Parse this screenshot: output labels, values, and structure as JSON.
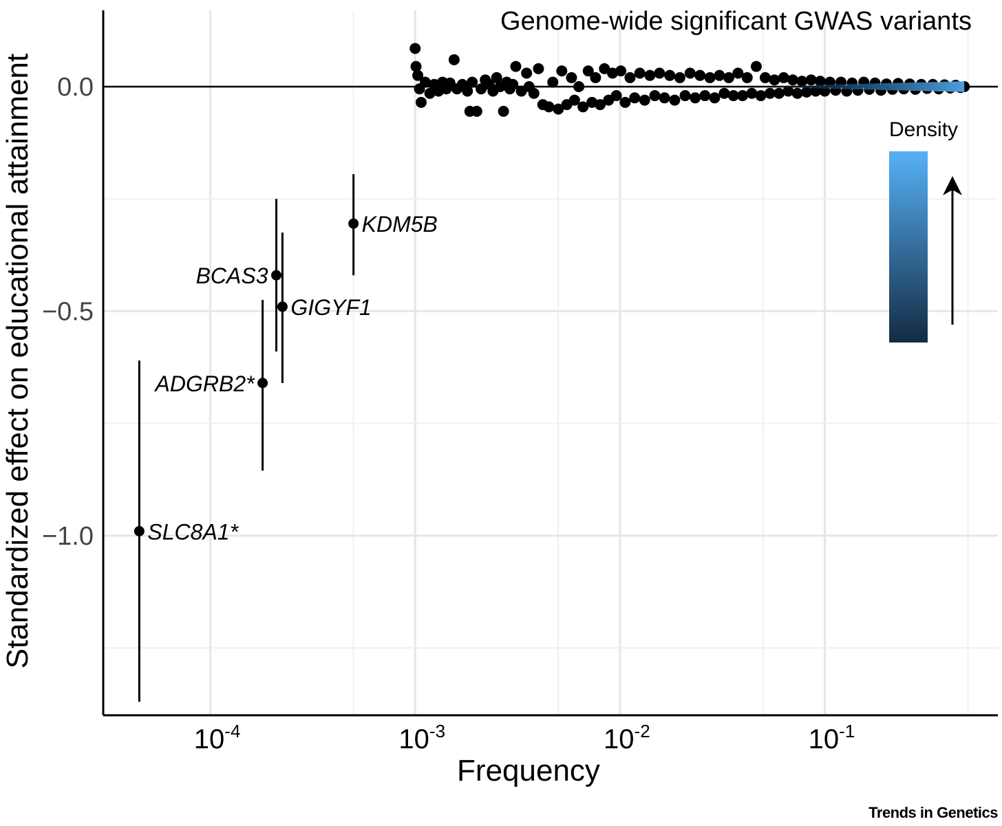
{
  "chart_data": {
    "type": "scatter",
    "title": "Genome-wide significant GWAS variants",
    "xlabel": "Frequency",
    "ylabel": "Standardized effect on educational attainment",
    "x_scale": "log10",
    "xlim": [
      3e-05,
      0.7
    ],
    "ylim": [
      -1.4,
      0.17
    ],
    "x_ticks": [
      {
        "value": 0.0001,
        "base": "10",
        "exp": "-4"
      },
      {
        "value": 0.001,
        "base": "10",
        "exp": "-3"
      },
      {
        "value": 0.01,
        "base": "10",
        "exp": "-2"
      },
      {
        "value": 0.1,
        "base": "10",
        "exp": "-1"
      }
    ],
    "y_ticks": [
      {
        "value": 0.0,
        "label": "0.0"
      },
      {
        "value": -0.5,
        "label": "−0.5"
      },
      {
        "value": -1.0,
        "label": "−1.0"
      }
    ],
    "grid": true,
    "reference_line_y": 0,
    "gene_points": [
      {
        "label": "KDM5B",
        "x": 0.0005,
        "y": -0.305,
        "lo": -0.42,
        "hi": -0.195,
        "label_side": "right"
      },
      {
        "label": "BCAS3",
        "x": 0.00021,
        "y": -0.42,
        "lo": -0.59,
        "hi": -0.25,
        "label_side": "left"
      },
      {
        "label": "GIGYF1",
        "x": 0.000225,
        "y": -0.49,
        "lo": -0.66,
        "hi": -0.325,
        "label_side": "right"
      },
      {
        "label": "ADGRB2*",
        "x": 0.00018,
        "y": -0.66,
        "lo": -0.855,
        "hi": -0.475,
        "label_side": "left"
      },
      {
        "label": "SLC8A1*",
        "x": 4.5e-05,
        "y": -0.99,
        "lo": -1.37,
        "hi": -0.61,
        "label_side": "right"
      }
    ],
    "gwas_points": [
      {
        "x": 0.001,
        "y": 0.085
      },
      {
        "x": 0.00101,
        "y": 0.045
      },
      {
        "x": 0.00103,
        "y": 0.025
      },
      {
        "x": 0.00105,
        "y": -0.005
      },
      {
        "x": 0.00107,
        "y": -0.035
      },
      {
        "x": 0.00112,
        "y": 0.01
      },
      {
        "x": 0.00118,
        "y": -0.015
      },
      {
        "x": 0.00124,
        "y": 0.005
      },
      {
        "x": 0.0013,
        "y": -0.01
      },
      {
        "x": 0.00136,
        "y": 0.01
      },
      {
        "x": 0.00142,
        "y": -0.005
      },
      {
        "x": 0.00148,
        "y": 0.008
      },
      {
        "x": 0.00155,
        "y": 0.06
      },
      {
        "x": 0.0016,
        "y": -0.005
      },
      {
        "x": 0.0017,
        "y": 0.005
      },
      {
        "x": 0.0018,
        "y": -0.01
      },
      {
        "x": 0.00185,
        "y": -0.055
      },
      {
        "x": 0.0019,
        "y": 0.01
      },
      {
        "x": 0.002,
        "y": -0.055
      },
      {
        "x": 0.0021,
        "y": -0.005
      },
      {
        "x": 0.0022,
        "y": 0.015
      },
      {
        "x": 0.0023,
        "y": 0.005
      },
      {
        "x": 0.0024,
        "y": -0.01
      },
      {
        "x": 0.0025,
        "y": 0.02
      },
      {
        "x": 0.0026,
        "y": 0.0
      },
      {
        "x": 0.0027,
        "y": -0.055
      },
      {
        "x": 0.0028,
        "y": 0.01
      },
      {
        "x": 0.0029,
        "y": -0.005
      },
      {
        "x": 0.003,
        "y": 0.005
      },
      {
        "x": 0.0031,
        "y": 0.045
      },
      {
        "x": 0.0033,
        "y": -0.01
      },
      {
        "x": 0.0035,
        "y": 0.03
      },
      {
        "x": 0.0036,
        "y": 0.0
      },
      {
        "x": 0.0038,
        "y": -0.015
      },
      {
        "x": 0.004,
        "y": 0.04
      },
      {
        "x": 0.0042,
        "y": -0.04
      },
      {
        "x": 0.0045,
        "y": -0.045
      },
      {
        "x": 0.0047,
        "y": 0.01
      },
      {
        "x": 0.005,
        "y": -0.05
      },
      {
        "x": 0.0052,
        "y": 0.035
      },
      {
        "x": 0.0055,
        "y": -0.04
      },
      {
        "x": 0.0058,
        "y": 0.02
      },
      {
        "x": 0.006,
        "y": -0.03
      },
      {
        "x": 0.0063,
        "y": 0.0
      },
      {
        "x": 0.0066,
        "y": -0.045
      },
      {
        "x": 0.007,
        "y": 0.035
      },
      {
        "x": 0.0073,
        "y": -0.035
      },
      {
        "x": 0.0076,
        "y": 0.02
      },
      {
        "x": 0.008,
        "y": -0.04
      },
      {
        "x": 0.0084,
        "y": 0.04
      },
      {
        "x": 0.0088,
        "y": -0.03
      },
      {
        "x": 0.0092,
        "y": 0.03
      },
      {
        "x": 0.0096,
        "y": -0.02
      },
      {
        "x": 0.0101,
        "y": 0.035
      },
      {
        "x": 0.0106,
        "y": -0.035
      },
      {
        "x": 0.0112,
        "y": 0.02
      },
      {
        "x": 0.0118,
        "y": -0.025
      },
      {
        "x": 0.0125,
        "y": 0.03
      },
      {
        "x": 0.0132,
        "y": -0.03
      },
      {
        "x": 0.014,
        "y": 0.025
      },
      {
        "x": 0.0148,
        "y": -0.02
      },
      {
        "x": 0.0156,
        "y": 0.03
      },
      {
        "x": 0.0165,
        "y": -0.025
      },
      {
        "x": 0.0175,
        "y": 0.025
      },
      {
        "x": 0.0185,
        "y": -0.03
      },
      {
        "x": 0.0196,
        "y": 0.02
      },
      {
        "x": 0.0208,
        "y": -0.02
      },
      {
        "x": 0.022,
        "y": 0.03
      },
      {
        "x": 0.0233,
        "y": -0.025
      },
      {
        "x": 0.0246,
        "y": 0.025
      },
      {
        "x": 0.026,
        "y": -0.02
      },
      {
        "x": 0.0275,
        "y": 0.02
      },
      {
        "x": 0.029,
        "y": -0.025
      },
      {
        "x": 0.0306,
        "y": 0.025
      },
      {
        "x": 0.0323,
        "y": -0.015
      },
      {
        "x": 0.034,
        "y": 0.02
      },
      {
        "x": 0.0358,
        "y": -0.02
      },
      {
        "x": 0.0377,
        "y": 0.03
      },
      {
        "x": 0.0397,
        "y": -0.02
      },
      {
        "x": 0.0418,
        "y": 0.02
      },
      {
        "x": 0.044,
        "y": -0.015
      },
      {
        "x": 0.0463,
        "y": 0.045
      },
      {
        "x": 0.0487,
        "y": -0.02
      },
      {
        "x": 0.0512,
        "y": 0.02
      },
      {
        "x": 0.054,
        "y": -0.015
      },
      {
        "x": 0.0568,
        "y": 0.015
      },
      {
        "x": 0.0598,
        "y": -0.015
      },
      {
        "x": 0.063,
        "y": 0.02
      },
      {
        "x": 0.0663,
        "y": -0.01
      },
      {
        "x": 0.0698,
        "y": 0.015
      },
      {
        "x": 0.0735,
        "y": -0.015
      },
      {
        "x": 0.0774,
        "y": 0.012
      },
      {
        "x": 0.0815,
        "y": -0.012
      },
      {
        "x": 0.0858,
        "y": 0.015
      },
      {
        "x": 0.0903,
        "y": -0.01
      },
      {
        "x": 0.095,
        "y": 0.012
      },
      {
        "x": 0.1,
        "y": -0.01
      },
      {
        "x": 0.106,
        "y": 0.01
      },
      {
        "x": 0.113,
        "y": -0.008
      },
      {
        "x": 0.12,
        "y": 0.01
      },
      {
        "x": 0.128,
        "y": -0.01
      },
      {
        "x": 0.136,
        "y": 0.008
      },
      {
        "x": 0.145,
        "y": -0.008
      },
      {
        "x": 0.155,
        "y": 0.01
      },
      {
        "x": 0.165,
        "y": -0.006
      },
      {
        "x": 0.176,
        "y": 0.008
      },
      {
        "x": 0.188,
        "y": -0.008
      },
      {
        "x": 0.2,
        "y": 0.006
      },
      {
        "x": 0.214,
        "y": -0.006
      },
      {
        "x": 0.228,
        "y": 0.007
      },
      {
        "x": 0.243,
        "y": -0.005
      },
      {
        "x": 0.26,
        "y": 0.006
      },
      {
        "x": 0.277,
        "y": -0.006
      },
      {
        "x": 0.296,
        "y": 0.005
      },
      {
        "x": 0.316,
        "y": -0.004
      },
      {
        "x": 0.337,
        "y": 0.005
      },
      {
        "x": 0.36,
        "y": -0.005
      },
      {
        "x": 0.384,
        "y": 0.004
      },
      {
        "x": 0.41,
        "y": -0.003
      },
      {
        "x": 0.435,
        "y": 0.003
      },
      {
        "x": 0.46,
        "y": -0.002
      },
      {
        "x": 0.48,
        "y": 0.0
      }
    ],
    "legend": {
      "title": "Density",
      "placement": "right",
      "color_low": "#132b43",
      "color_high": "#56b1f7"
    },
    "density_band": {
      "x_from": 0.04,
      "x_to": 0.48,
      "y_halfwidth": 0.012
    }
  },
  "credit": "Trends in Genetics"
}
